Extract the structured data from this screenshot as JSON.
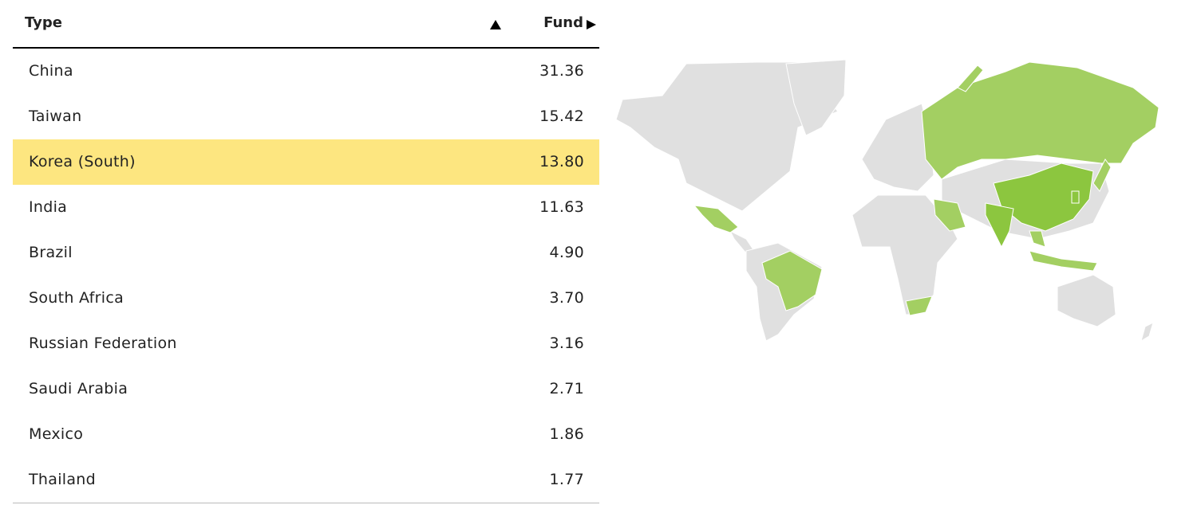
{
  "table": {
    "header": {
      "type": "Type",
      "fund": "Fund"
    },
    "rows": [
      [
        "China",
        "31.36"
      ],
      [
        "Taiwan",
        "15.42"
      ],
      [
        "Korea (South)",
        "13.80"
      ],
      [
        "India",
        "11.63"
      ],
      [
        "Brazil",
        "4.90"
      ],
      [
        "South Africa",
        "3.70"
      ],
      [
        "Russian Federation",
        "3.16"
      ],
      [
        "Saudi Arabia",
        "2.71"
      ],
      [
        "Mexico",
        "1.86"
      ],
      [
        "Thailand",
        "1.77"
      ]
    ]
  }
}
